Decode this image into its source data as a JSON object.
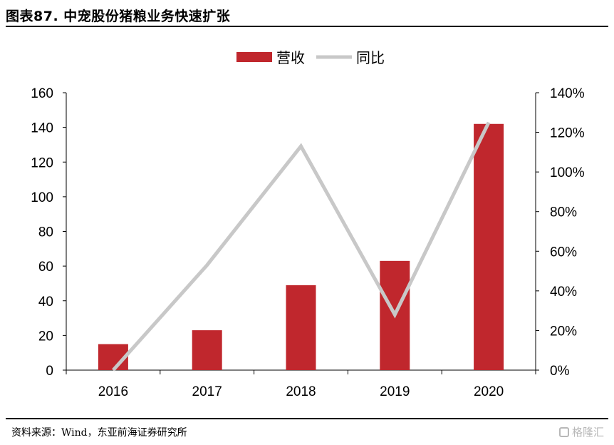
{
  "header": {
    "title": "图表87. 中宠股份猪粮业务快速扩张"
  },
  "footer": {
    "source": "资料来源：Wind，东亚前海证券研究所",
    "watermark": "格隆汇"
  },
  "chart_data": {
    "type": "bar",
    "categories": [
      "2016",
      "2017",
      "2018",
      "2019",
      "2020"
    ],
    "series": [
      {
        "name": "营收",
        "type": "bar",
        "axis": "left",
        "color": "#c0272d",
        "values": [
          15,
          23,
          49,
          63,
          142
        ]
      },
      {
        "name": "同比",
        "type": "line",
        "axis": "right",
        "color": "#c8c8c8",
        "values": [
          0.0,
          0.53,
          1.13,
          0.28,
          1.25
        ]
      }
    ],
    "y_left": {
      "min": 0,
      "max": 160,
      "ticks": [
        "0",
        "20",
        "40",
        "60",
        "80",
        "100",
        "120",
        "140",
        "160"
      ]
    },
    "y_right": {
      "min": 0,
      "max": 1.4,
      "ticks": [
        "0%",
        "20%",
        "40%",
        "60%",
        "80%",
        "100%",
        "120%",
        "140%"
      ]
    },
    "legend_position": "top-center",
    "grid": false
  }
}
